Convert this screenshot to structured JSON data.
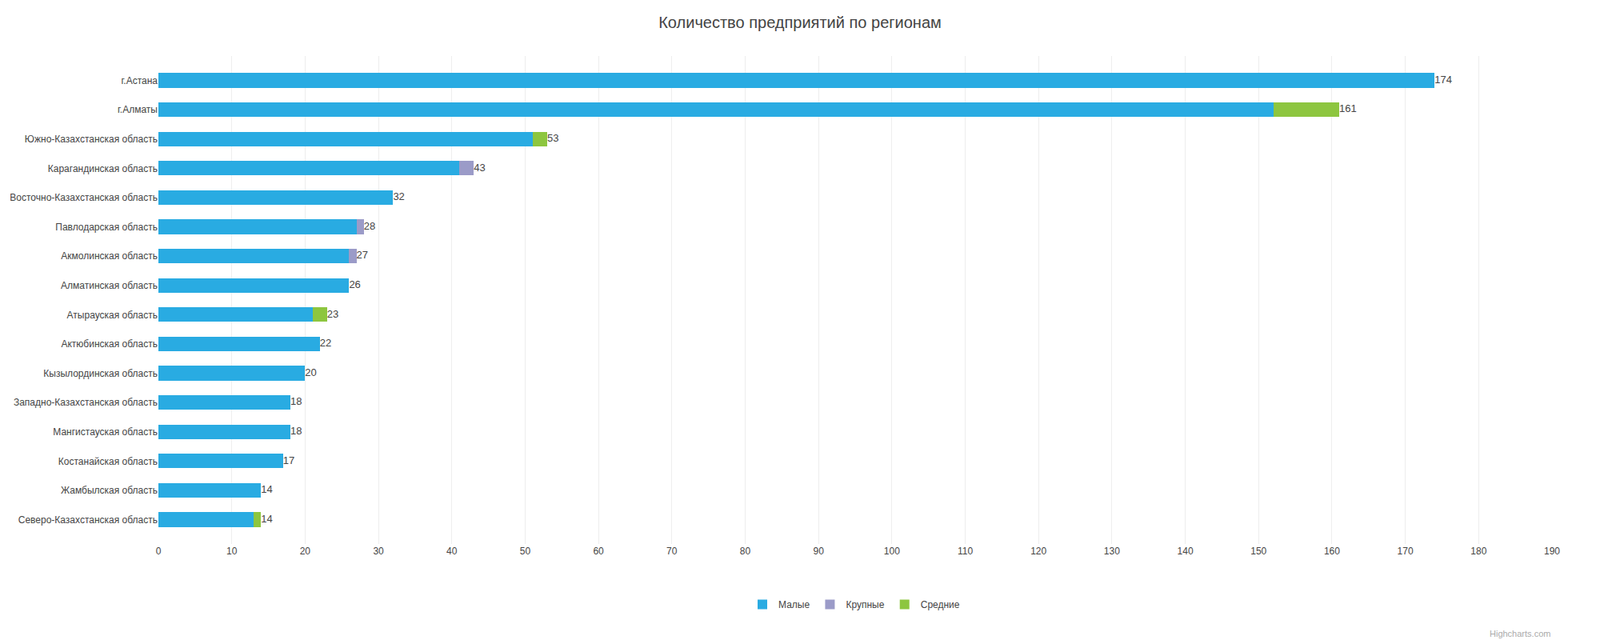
{
  "chart_data": {
    "type": "bar",
    "orientation": "horizontal",
    "stacked": true,
    "title": "Количество предприятий по регионам",
    "categories": [
      "Северо-Казахстанская область",
      "Жамбылская область",
      "Костанайская область",
      "Мангистауская область",
      "Западно-Казахстанская область",
      "Кызылординская область",
      "Актюбинская область",
      "Атырауская область",
      "Алматинская область",
      "Акмолинская область",
      "Павлодарская область",
      "Восточно-Казахстанская область",
      "Карагандинская область",
      "Южно-Казахстанская область",
      "г.Алматы",
      "г.Астана"
    ],
    "series": [
      {
        "name": "Малые",
        "color": "#29ABE2",
        "values": [
          13,
          14,
          17,
          18,
          18,
          20,
          22,
          21,
          26,
          26,
          27,
          32,
          41,
          51,
          152,
          174
        ]
      },
      {
        "name": "Крупные",
        "color": "#9B9BC8",
        "values": [
          0,
          0,
          0,
          0,
          0,
          0,
          0,
          0,
          0,
          1,
          1,
          0,
          2,
          0,
          0,
          0
        ]
      },
      {
        "name": "Средние",
        "color": "#8DC63F",
        "values": [
          1,
          0,
          0,
          0,
          0,
          0,
          0,
          2,
          0,
          0,
          0,
          0,
          0,
          2,
          9,
          0
        ]
      }
    ],
    "totals": [
      14,
      14,
      17,
      18,
      18,
      20,
      22,
      23,
      26,
      27,
      28,
      32,
      43,
      53,
      161,
      174
    ],
    "xlim": [
      0,
      190
    ],
    "xticks": [
      0,
      10,
      20,
      30,
      40,
      50,
      60,
      70,
      80,
      90,
      100,
      110,
      120,
      130,
      140,
      150,
      160,
      170,
      180,
      190
    ],
    "grid": true,
    "legend": "bottom",
    "annotations": [
      "Highcharts.com"
    ]
  }
}
